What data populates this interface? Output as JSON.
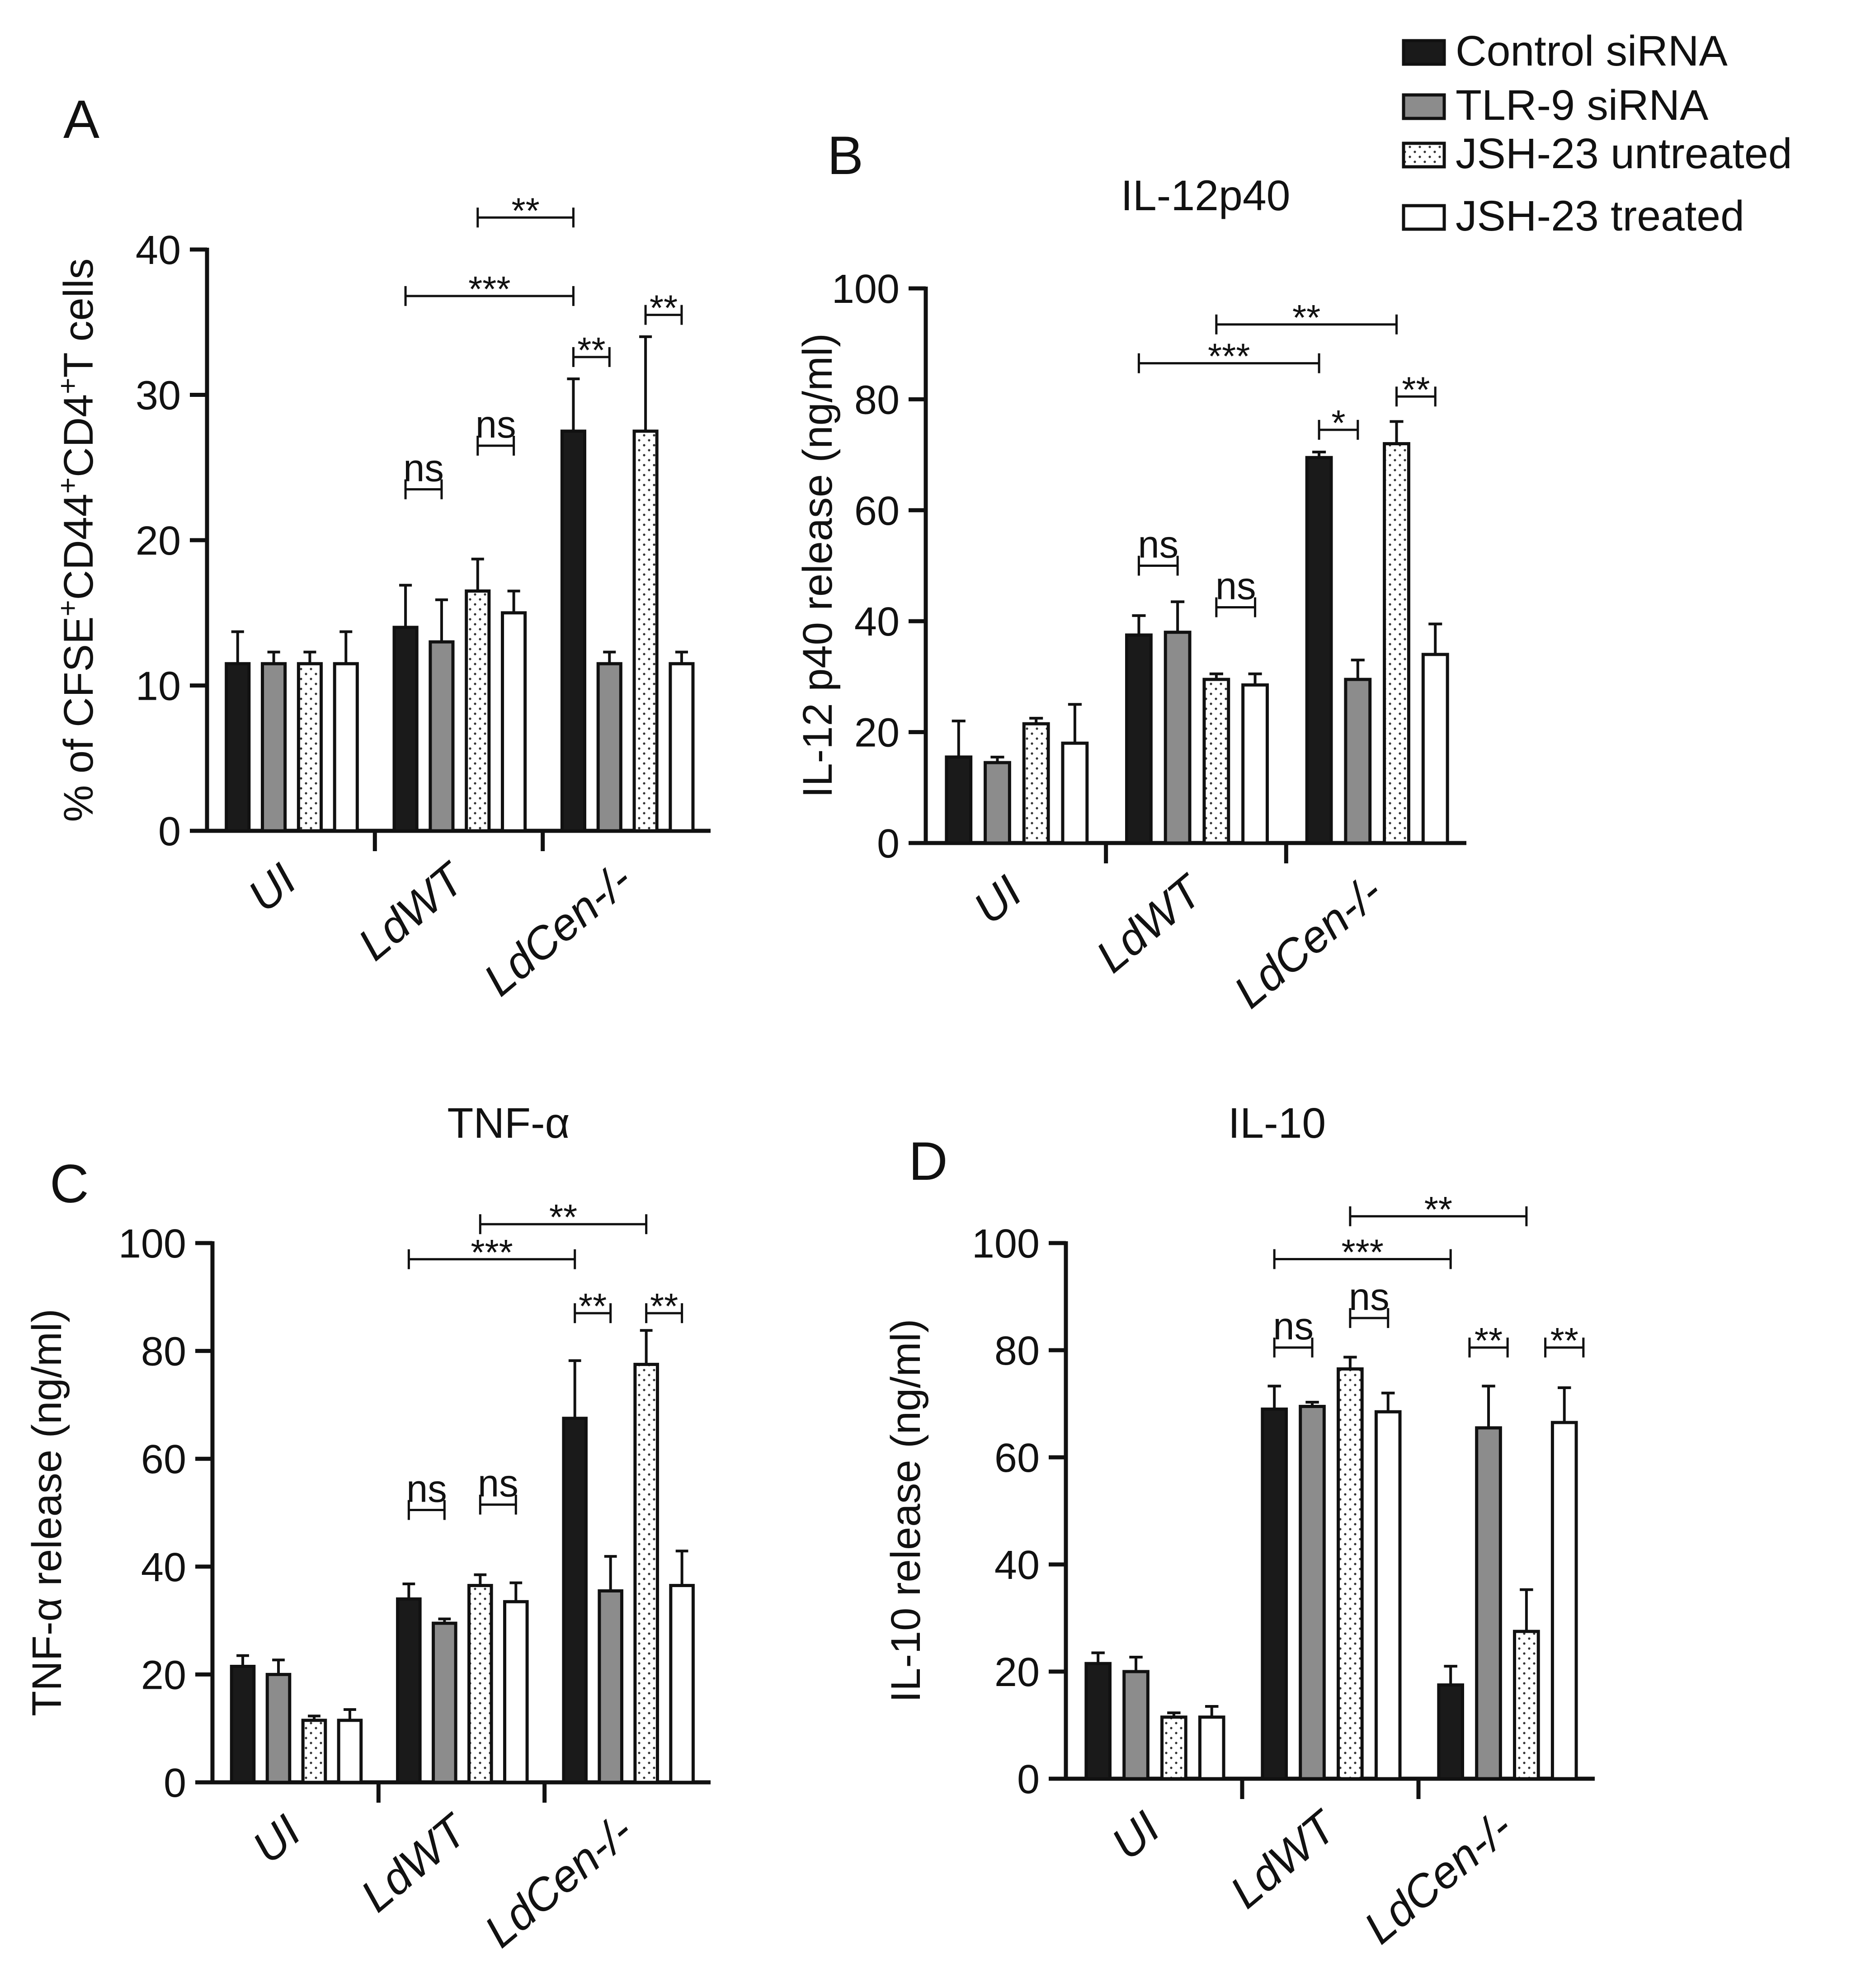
{
  "legend": {
    "entries": [
      {
        "label": "Control siRNA",
        "style": "black"
      },
      {
        "label": "TLR-9 siRNA",
        "style": "gray"
      },
      {
        "label": "JSH-23 untreated",
        "style": "dotted"
      },
      {
        "label": "JSH-23 treated",
        "style": "white"
      }
    ]
  },
  "colors": {
    "black": "#1a1a1a",
    "gray": "#8c8c8c",
    "white": "#ffffff",
    "dot": "#333333",
    "axis": "#111111"
  },
  "chart_data": [
    {
      "panel": "A",
      "type": "bar",
      "title": "",
      "ylabel": "% of  CFSE+CD44+CD4+T cells",
      "ylabel_parts": [
        "% of  CFSE",
        "+",
        "CD44",
        "+",
        "CD4",
        "+",
        "T cells"
      ],
      "ylim": [
        0,
        40
      ],
      "yticks": [
        0,
        10,
        20,
        30,
        40
      ],
      "categories": [
        "UI",
        "LdWT",
        "LdCen-/-"
      ],
      "series": [
        {
          "name": "Control siRNA",
          "values": [
            11.5,
            14,
            27.5
          ],
          "errors": [
            2.2,
            2.9,
            3.6
          ]
        },
        {
          "name": "TLR-9 siRNA",
          "values": [
            11.5,
            13,
            11.5
          ],
          "errors": [
            0.8,
            2.9,
            0.8
          ]
        },
        {
          "name": "JSH-23 untreated",
          "values": [
            11.5,
            16.5,
            27.5
          ],
          "errors": [
            0.8,
            2.2,
            6.5
          ]
        },
        {
          "name": "JSH-23 treated",
          "values": [
            11.5,
            15,
            11.5
          ],
          "errors": [
            2.2,
            1.5,
            0.8
          ]
        }
      ],
      "annotations": [
        {
          "label": "**",
          "from": [
            1,
            2
          ],
          "to": [
            2,
            0
          ],
          "level": 42.2
        },
        {
          "label": "***",
          "from": [
            1,
            0
          ],
          "to": [
            2,
            0
          ],
          "level": 36.8
        },
        {
          "label": "**",
          "from": [
            2,
            0
          ],
          "to": [
            2,
            1
          ],
          "level": 32.6
        },
        {
          "label": "**",
          "from": [
            2,
            2
          ],
          "to": [
            2,
            3
          ],
          "level": 35.5
        },
        {
          "label": "ns",
          "from": [
            1,
            0
          ],
          "to": [
            1,
            1
          ],
          "level": 23.5
        },
        {
          "label": "ns",
          "from": [
            1,
            2
          ],
          "to": [
            1,
            3
          ],
          "level": 26.5
        }
      ]
    },
    {
      "panel": "B",
      "type": "bar",
      "title": "IL-12p40",
      "ylabel": "IL-12 p40 release (ng/ml)",
      "ylim": [
        0,
        100
      ],
      "yticks": [
        0,
        20,
        40,
        60,
        80,
        100
      ],
      "categories": [
        "UI",
        "LdWT",
        "LdCen-/-"
      ],
      "series": [
        {
          "name": "Control siRNA",
          "values": [
            15.5,
            37.5,
            69.5
          ],
          "errors": [
            6.5,
            3.5,
            1.0
          ]
        },
        {
          "name": "TLR-9 siRNA",
          "values": [
            14.5,
            38,
            29.5
          ],
          "errors": [
            1.0,
            5.5,
            3.5
          ]
        },
        {
          "name": "JSH-23 untreated",
          "values": [
            21.5,
            29.5,
            72
          ],
          "errors": [
            1.0,
            1.0,
            4.0
          ]
        },
        {
          "name": "JSH-23 treated",
          "values": [
            18,
            28.5,
            34
          ],
          "errors": [
            7.0,
            2.0,
            5.5
          ]
        }
      ],
      "annotations": [
        {
          "label": "**",
          "from": [
            1,
            2
          ],
          "to": [
            2,
            2
          ],
          "level": 93.5
        },
        {
          "label": "***",
          "from": [
            1,
            0
          ],
          "to": [
            2,
            0
          ],
          "level": 86.5
        },
        {
          "label": "*",
          "from": [
            2,
            0
          ],
          "to": [
            2,
            1
          ],
          "level": 74.5
        },
        {
          "label": "**",
          "from": [
            2,
            2
          ],
          "to": [
            2,
            3
          ],
          "level": 80.5
        },
        {
          "label": "ns",
          "from": [
            1,
            0
          ],
          "to": [
            1,
            1
          ],
          "level": 50
        },
        {
          "label": "ns",
          "from": [
            1,
            2
          ],
          "to": [
            1,
            3
          ],
          "level": 42.5
        }
      ]
    },
    {
      "panel": "C",
      "type": "bar",
      "title": "TNF-α",
      "ylabel": "TNF-α release (ng/ml)",
      "ylim": [
        0,
        100
      ],
      "yticks": [
        0,
        20,
        40,
        60,
        80,
        100
      ],
      "categories": [
        "UI",
        "LdWT",
        "LdCen-/-"
      ],
      "series": [
        {
          "name": "Control siRNA",
          "values": [
            21.5,
            34,
            67.5
          ],
          "errors": [
            2.0,
            2.8,
            10.7
          ]
        },
        {
          "name": "TLR-9 siRNA",
          "values": [
            20,
            29.5,
            35.5
          ],
          "errors": [
            2.7,
            0.8,
            6.4
          ]
        },
        {
          "name": "JSH-23 untreated",
          "values": [
            11.5,
            36.5,
            77.5
          ],
          "errors": [
            0.8,
            2.0,
            6.3
          ]
        },
        {
          "name": "JSH-23 treated",
          "values": [
            11.5,
            33.5,
            36.5
          ],
          "errors": [
            2.0,
            3.5,
            6.4
          ]
        }
      ],
      "annotations": [
        {
          "label": "**",
          "from": [
            1,
            2
          ],
          "to": [
            2,
            2
          ],
          "level": 103.5
        },
        {
          "label": "***",
          "from": [
            1,
            0
          ],
          "to": [
            2,
            0
          ],
          "level": 97
        },
        {
          "label": "**",
          "from": [
            2,
            0
          ],
          "to": [
            2,
            1
          ],
          "level": 87
        },
        {
          "label": "**",
          "from": [
            2,
            2
          ],
          "to": [
            2,
            3
          ],
          "level": 87
        },
        {
          "label": "ns",
          "from": [
            1,
            0
          ],
          "to": [
            1,
            1
          ],
          "level": 50.5
        },
        {
          "label": "ns",
          "from": [
            1,
            2
          ],
          "to": [
            1,
            3
          ],
          "level": 51.5
        }
      ]
    },
    {
      "panel": "D",
      "type": "bar",
      "title": "IL-10",
      "ylabel": "IL-10 release (ng/ml)",
      "ylim": [
        0,
        100
      ],
      "yticks": [
        0,
        20,
        40,
        60,
        80,
        100
      ],
      "categories": [
        "UI",
        "LdWT",
        "LdCen-/-"
      ],
      "series": [
        {
          "name": "Control siRNA",
          "values": [
            21.5,
            69,
            17.5
          ],
          "errors": [
            2.0,
            4.3,
            3.5
          ]
        },
        {
          "name": "TLR-9 siRNA",
          "values": [
            20,
            69.5,
            65.5
          ],
          "errors": [
            2.7,
            0.8,
            7.8
          ]
        },
        {
          "name": "JSH-23 untreated",
          "values": [
            11.5,
            76.5,
            27.5
          ],
          "errors": [
            0.8,
            2.2,
            7.8
          ]
        },
        {
          "name": "JSH-23 treated",
          "values": [
            11.5,
            68.5,
            66.5
          ],
          "errors": [
            2.0,
            3.5,
            6.5
          ]
        }
      ],
      "annotations": [
        {
          "label": "**",
          "from": [
            1,
            2
          ],
          "to": [
            2,
            2
          ],
          "level": 105
        },
        {
          "label": "***",
          "from": [
            1,
            0
          ],
          "to": [
            2,
            0
          ],
          "level": 97
        },
        {
          "label": "ns",
          "from": [
            1,
            0
          ],
          "to": [
            1,
            1
          ],
          "level": 80.5
        },
        {
          "label": "ns",
          "from": [
            1,
            2
          ],
          "to": [
            1,
            3
          ],
          "level": 86
        },
        {
          "label": "**",
          "from": [
            2,
            1
          ],
          "to": [
            2,
            1
          ],
          "level": 80.5
        },
        {
          "label": "**",
          "from": [
            2,
            3
          ],
          "to": [
            2,
            3
          ],
          "level": 80.5
        }
      ]
    }
  ]
}
